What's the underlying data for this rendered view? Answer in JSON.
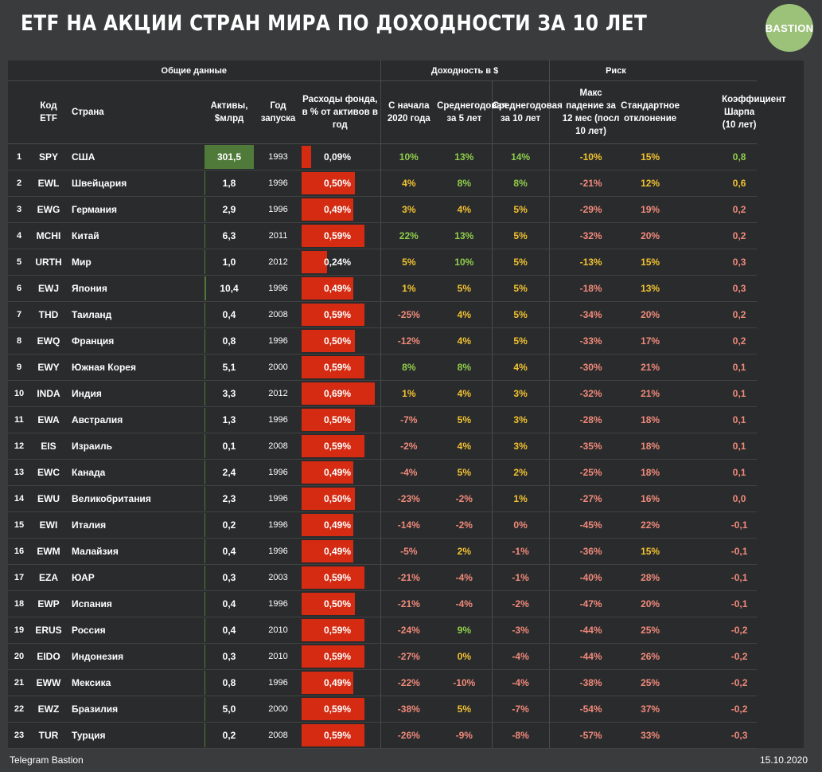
{
  "title": "ETF НА АКЦИИ СТРАН МИРА ПО ДОХОДНОСТИ ЗА 10 ЛЕТ",
  "logo": "BASTION",
  "groups": {
    "general": "Общие данные",
    "returns": "Доходность в $",
    "risk": "Риск"
  },
  "headers": {
    "code": "Код ETF",
    "country": "Страна",
    "assets": "Активы, $млрд",
    "year": "Год запуска",
    "expenses": "Расходы фонда, в % от активов в год",
    "ytd": "С начала 2020 года",
    "avg5": "Среднегодовая за 5 лет",
    "avg10": "Среднегодовая за 10 лет",
    "maxdd": "Макс падение за 12 мес (посл 10 лет)",
    "stdev": "Стандартное отклонение",
    "sharpe": "Коэффициент Шарпа (10 лет)"
  },
  "colors": {
    "green": "#8fce4b",
    "yellow": "#f2c230",
    "red": "#f08a7a",
    "asset_bar": "#4f7a3a",
    "expense_bar": "#d42b12"
  },
  "rows": [
    {
      "n": "1",
      "code": "SPY",
      "country": "США",
      "assets": "301,5",
      "assets_v": 301.5,
      "year": "1993",
      "exp": "0,09%",
      "exp_v": 0.09,
      "ytd": "10%",
      "ytd_c": "green",
      "avg5": "13%",
      "avg5_c": "green",
      "avg10": "14%",
      "avg10_c": "green",
      "dd": "-10%",
      "dd_c": "yellow",
      "sd": "15%",
      "sd_c": "yellow",
      "sh": "0,8",
      "sh_c": "green"
    },
    {
      "n": "2",
      "code": "EWL",
      "country": "Швейцария",
      "assets": "1,8",
      "assets_v": 1.8,
      "year": "1996",
      "exp": "0,50%",
      "exp_v": 0.5,
      "ytd": "4%",
      "ytd_c": "yellow",
      "avg5": "8%",
      "avg5_c": "green",
      "avg10": "8%",
      "avg10_c": "green",
      "dd": "-21%",
      "dd_c": "red",
      "sd": "12%",
      "sd_c": "yellow",
      "sh": "0,6",
      "sh_c": "yellow"
    },
    {
      "n": "3",
      "code": "EWG",
      "country": "Германия",
      "assets": "2,9",
      "assets_v": 2.9,
      "year": "1996",
      "exp": "0,49%",
      "exp_v": 0.49,
      "ytd": "3%",
      "ytd_c": "yellow",
      "avg5": "4%",
      "avg5_c": "yellow",
      "avg10": "5%",
      "avg10_c": "yellow",
      "dd": "-29%",
      "dd_c": "red",
      "sd": "19%",
      "sd_c": "red",
      "sh": "0,2",
      "sh_c": "red"
    },
    {
      "n": "4",
      "code": "MCHI",
      "country": "Китай",
      "assets": "6,3",
      "assets_v": 6.3,
      "year": "2011",
      "exp": "0,59%",
      "exp_v": 0.59,
      "ytd": "22%",
      "ytd_c": "green",
      "avg5": "13%",
      "avg5_c": "green",
      "avg10": "5%",
      "avg10_c": "yellow",
      "dd": "-32%",
      "dd_c": "red",
      "sd": "20%",
      "sd_c": "red",
      "sh": "0,2",
      "sh_c": "red"
    },
    {
      "n": "5",
      "code": "URTH",
      "country": "Мир",
      "assets": "1,0",
      "assets_v": 1.0,
      "year": "2012",
      "exp": "0,24%",
      "exp_v": 0.24,
      "ytd": "5%",
      "ytd_c": "yellow",
      "avg5": "10%",
      "avg5_c": "green",
      "avg10": "5%",
      "avg10_c": "yellow",
      "dd": "-13%",
      "dd_c": "yellow",
      "sd": "15%",
      "sd_c": "yellow",
      "sh": "0,3",
      "sh_c": "red"
    },
    {
      "n": "6",
      "code": "EWJ",
      "country": "Япония",
      "assets": "10,4",
      "assets_v": 10.4,
      "year": "1996",
      "exp": "0,49%",
      "exp_v": 0.49,
      "ytd": "1%",
      "ytd_c": "yellow",
      "avg5": "5%",
      "avg5_c": "yellow",
      "avg10": "5%",
      "avg10_c": "yellow",
      "dd": "-18%",
      "dd_c": "red",
      "sd": "13%",
      "sd_c": "yellow",
      "sh": "0,3",
      "sh_c": "red"
    },
    {
      "n": "7",
      "code": "THD",
      "country": "Таиланд",
      "assets": "0,4",
      "assets_v": 0.4,
      "year": "2008",
      "exp": "0,59%",
      "exp_v": 0.59,
      "ytd": "-25%",
      "ytd_c": "red",
      "avg5": "4%",
      "avg5_c": "yellow",
      "avg10": "5%",
      "avg10_c": "yellow",
      "dd": "-34%",
      "dd_c": "red",
      "sd": "20%",
      "sd_c": "red",
      "sh": "0,2",
      "sh_c": "red"
    },
    {
      "n": "8",
      "code": "EWQ",
      "country": "Франция",
      "assets": "0,8",
      "assets_v": 0.8,
      "year": "1996",
      "exp": "0,50%",
      "exp_v": 0.5,
      "ytd": "-12%",
      "ytd_c": "red",
      "avg5": "4%",
      "avg5_c": "yellow",
      "avg10": "5%",
      "avg10_c": "yellow",
      "dd": "-33%",
      "dd_c": "red",
      "sd": "17%",
      "sd_c": "red",
      "sh": "0,2",
      "sh_c": "red"
    },
    {
      "n": "9",
      "code": "EWY",
      "country": "Южная Корея",
      "assets": "5,1",
      "assets_v": 5.1,
      "year": "2000",
      "exp": "0,59%",
      "exp_v": 0.59,
      "ytd": "8%",
      "ytd_c": "green",
      "avg5": "8%",
      "avg5_c": "green",
      "avg10": "4%",
      "avg10_c": "yellow",
      "dd": "-30%",
      "dd_c": "red",
      "sd": "21%",
      "sd_c": "red",
      "sh": "0,1",
      "sh_c": "red"
    },
    {
      "n": "10",
      "code": "INDA",
      "country": "Индия",
      "assets": "3,3",
      "assets_v": 3.3,
      "year": "2012",
      "exp": "0,69%",
      "exp_v": 0.69,
      "ytd": "1%",
      "ytd_c": "yellow",
      "avg5": "4%",
      "avg5_c": "yellow",
      "avg10": "3%",
      "avg10_c": "yellow",
      "dd": "-32%",
      "dd_c": "red",
      "sd": "21%",
      "sd_c": "red",
      "sh": "0,1",
      "sh_c": "red"
    },
    {
      "n": "11",
      "code": "EWA",
      "country": "Австралия",
      "assets": "1,3",
      "assets_v": 1.3,
      "year": "1996",
      "exp": "0,50%",
      "exp_v": 0.5,
      "ytd": "-7%",
      "ytd_c": "red",
      "avg5": "5%",
      "avg5_c": "yellow",
      "avg10": "3%",
      "avg10_c": "yellow",
      "dd": "-28%",
      "dd_c": "red",
      "sd": "18%",
      "sd_c": "red",
      "sh": "0,1",
      "sh_c": "red"
    },
    {
      "n": "12",
      "code": "EIS",
      "country": "Израиль",
      "assets": "0,1",
      "assets_v": 0.1,
      "year": "2008",
      "exp": "0,59%",
      "exp_v": 0.59,
      "ytd": "-2%",
      "ytd_c": "red",
      "avg5": "4%",
      "avg5_c": "yellow",
      "avg10": "3%",
      "avg10_c": "yellow",
      "dd": "-35%",
      "dd_c": "red",
      "sd": "18%",
      "sd_c": "red",
      "sh": "0,1",
      "sh_c": "red"
    },
    {
      "n": "13",
      "code": "EWC",
      "country": "Канада",
      "assets": "2,4",
      "assets_v": 2.4,
      "year": "1996",
      "exp": "0,49%",
      "exp_v": 0.49,
      "ytd": "-4%",
      "ytd_c": "red",
      "avg5": "5%",
      "avg5_c": "yellow",
      "avg10": "2%",
      "avg10_c": "yellow",
      "dd": "-25%",
      "dd_c": "red",
      "sd": "18%",
      "sd_c": "red",
      "sh": "0,1",
      "sh_c": "red"
    },
    {
      "n": "14",
      "code": "EWU",
      "country": "Великобритания",
      "assets": "2,3",
      "assets_v": 2.3,
      "year": "1996",
      "exp": "0,50%",
      "exp_v": 0.5,
      "ytd": "-23%",
      "ytd_c": "red",
      "avg5": "-2%",
      "avg5_c": "red",
      "avg10": "1%",
      "avg10_c": "yellow",
      "dd": "-27%",
      "dd_c": "red",
      "sd": "16%",
      "sd_c": "red",
      "sh": "0,0",
      "sh_c": "red"
    },
    {
      "n": "15",
      "code": "EWI",
      "country": "Италия",
      "assets": "0,2",
      "assets_v": 0.2,
      "year": "1996",
      "exp": "0,49%",
      "exp_v": 0.49,
      "ytd": "-14%",
      "ytd_c": "red",
      "avg5": "-2%",
      "avg5_c": "red",
      "avg10": "0%",
      "avg10_c": "red",
      "dd": "-45%",
      "dd_c": "red",
      "sd": "22%",
      "sd_c": "red",
      "sh": "-0,1",
      "sh_c": "red"
    },
    {
      "n": "16",
      "code": "EWM",
      "country": "Малайзия",
      "assets": "0,4",
      "assets_v": 0.4,
      "year": "1996",
      "exp": "0,49%",
      "exp_v": 0.49,
      "ytd": "-5%",
      "ytd_c": "red",
      "avg5": "2%",
      "avg5_c": "yellow",
      "avg10": "-1%",
      "avg10_c": "red",
      "dd": "-36%",
      "dd_c": "red",
      "sd": "15%",
      "sd_c": "yellow",
      "sh": "-0,1",
      "sh_c": "red"
    },
    {
      "n": "17",
      "code": "EZA",
      "country": "ЮАР",
      "assets": "0,3",
      "assets_v": 0.3,
      "year": "2003",
      "exp": "0,59%",
      "exp_v": 0.59,
      "ytd": "-21%",
      "ytd_c": "red",
      "avg5": "-4%",
      "avg5_c": "red",
      "avg10": "-1%",
      "avg10_c": "red",
      "dd": "-40%",
      "dd_c": "red",
      "sd": "28%",
      "sd_c": "red",
      "sh": "-0,1",
      "sh_c": "red"
    },
    {
      "n": "18",
      "code": "EWP",
      "country": "Испания",
      "assets": "0,4",
      "assets_v": 0.4,
      "year": "1996",
      "exp": "0,50%",
      "exp_v": 0.5,
      "ytd": "-21%",
      "ytd_c": "red",
      "avg5": "-4%",
      "avg5_c": "red",
      "avg10": "-2%",
      "avg10_c": "red",
      "dd": "-47%",
      "dd_c": "red",
      "sd": "20%",
      "sd_c": "red",
      "sh": "-0,1",
      "sh_c": "red"
    },
    {
      "n": "19",
      "code": "ERUS",
      "country": "Россия",
      "assets": "0,4",
      "assets_v": 0.4,
      "year": "2010",
      "exp": "0,59%",
      "exp_v": 0.59,
      "ytd": "-24%",
      "ytd_c": "red",
      "avg5": "9%",
      "avg5_c": "green",
      "avg10": "-3%",
      "avg10_c": "red",
      "dd": "-44%",
      "dd_c": "red",
      "sd": "25%",
      "sd_c": "red",
      "sh": "-0,2",
      "sh_c": "red"
    },
    {
      "n": "20",
      "code": "EIDO",
      "country": "Индонезия",
      "assets": "0,3",
      "assets_v": 0.3,
      "year": "2010",
      "exp": "0,59%",
      "exp_v": 0.59,
      "ytd": "-27%",
      "ytd_c": "red",
      "avg5": "0%",
      "avg5_c": "yellow",
      "avg10": "-4%",
      "avg10_c": "red",
      "dd": "-44%",
      "dd_c": "red",
      "sd": "26%",
      "sd_c": "red",
      "sh": "-0,2",
      "sh_c": "red"
    },
    {
      "n": "21",
      "code": "EWW",
      "country": "Мексика",
      "assets": "0,8",
      "assets_v": 0.8,
      "year": "1996",
      "exp": "0,49%",
      "exp_v": 0.49,
      "ytd": "-22%",
      "ytd_c": "red",
      "avg5": "-10%",
      "avg5_c": "red",
      "avg10": "-4%",
      "avg10_c": "red",
      "dd": "-38%",
      "dd_c": "red",
      "sd": "25%",
      "sd_c": "red",
      "sh": "-0,2",
      "sh_c": "red"
    },
    {
      "n": "22",
      "code": "EWZ",
      "country": "Бразилия",
      "assets": "5,0",
      "assets_v": 5.0,
      "year": "2000",
      "exp": "0,59%",
      "exp_v": 0.59,
      "ytd": "-38%",
      "ytd_c": "red",
      "avg5": "5%",
      "avg5_c": "yellow",
      "avg10": "-7%",
      "avg10_c": "red",
      "dd": "-54%",
      "dd_c": "red",
      "sd": "37%",
      "sd_c": "red",
      "sh": "-0,2",
      "sh_c": "red"
    },
    {
      "n": "23",
      "code": "TUR",
      "country": "Турция",
      "assets": "0,2",
      "assets_v": 0.2,
      "year": "2008",
      "exp": "0,59%",
      "exp_v": 0.59,
      "ytd": "-26%",
      "ytd_c": "red",
      "avg5": "-9%",
      "avg5_c": "red",
      "avg10": "-8%",
      "avg10_c": "red",
      "dd": "-57%",
      "dd_c": "red",
      "sd": "33%",
      "sd_c": "red",
      "sh": "-0,3",
      "sh_c": "red"
    }
  ],
  "footer": {
    "source": "Telegram Bastion",
    "date": "15.10.2020"
  }
}
